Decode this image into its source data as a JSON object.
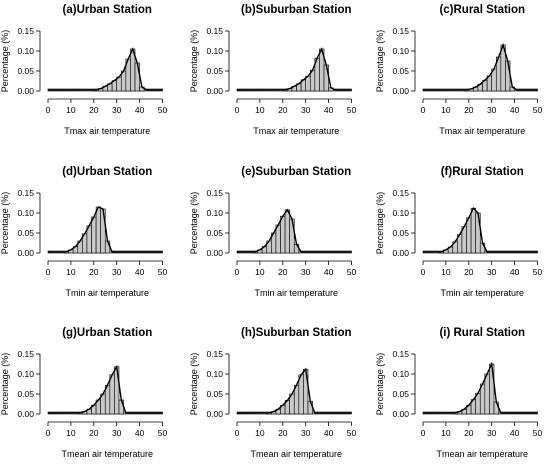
{
  "figure": {
    "background": "#ffffff",
    "bar_color": "#c8c8c8",
    "line_color": "#000000"
  },
  "chart_data": [
    {
      "type": "bar",
      "title": "(a)Urban Station",
      "xlabel": "Tmax air temperature",
      "ylabel": "Percentage (%)",
      "xlim": [
        0,
        50
      ],
      "ylim": [
        0,
        0.15
      ],
      "xticks": [
        "0",
        "10",
        "20",
        "30",
        "40",
        "50"
      ],
      "yticks": [
        "0.00",
        "0.05",
        "0.10",
        "0.15"
      ],
      "x": [
        21,
        23,
        25,
        27,
        29,
        31,
        33,
        35,
        37,
        39,
        41
      ],
      "values": [
        0.003,
        0.006,
        0.012,
        0.018,
        0.026,
        0.035,
        0.05,
        0.08,
        0.105,
        0.07,
        0.01
      ]
    },
    {
      "type": "bar",
      "title": "(b)Suburban Station",
      "xlabel": "Tmax air temperature",
      "ylabel": "Percentage (%)",
      "xlim": [
        0,
        50
      ],
      "ylim": [
        0,
        0.15
      ],
      "xticks": [
        "0",
        "10",
        "20",
        "30",
        "40",
        "50"
      ],
      "yticks": [
        "0.00",
        "0.05",
        "0.10",
        "0.15"
      ],
      "x": [
        21,
        23,
        25,
        27,
        29,
        31,
        33,
        35,
        37,
        39,
        41
      ],
      "values": [
        0.003,
        0.006,
        0.012,
        0.018,
        0.028,
        0.037,
        0.052,
        0.082,
        0.105,
        0.065,
        0.008
      ]
    },
    {
      "type": "bar",
      "title": "(c)Rural Station",
      "xlabel": "Tmax air temperature",
      "ylabel": "Percentage (%)",
      "xlim": [
        0,
        50
      ],
      "ylim": [
        0,
        0.15
      ],
      "xticks": [
        "0",
        "10",
        "20",
        "30",
        "40",
        "50"
      ],
      "yticks": [
        "0.00",
        "0.05",
        "0.10",
        "0.15"
      ],
      "x": [
        19,
        21,
        23,
        25,
        27,
        29,
        31,
        33,
        35,
        37,
        39
      ],
      "values": [
        0.003,
        0.005,
        0.01,
        0.017,
        0.027,
        0.038,
        0.055,
        0.085,
        0.115,
        0.075,
        0.01
      ]
    },
    {
      "type": "bar",
      "title": "(d)Urban Station",
      "xlabel": "Tmin air temperature",
      "ylabel": "Percentage (%)",
      "xlim": [
        0,
        50
      ],
      "ylim": [
        0,
        0.15
      ],
      "xticks": [
        "0",
        "10",
        "20",
        "30",
        "40",
        "50"
      ],
      "yticks": [
        "0.00",
        "0.05",
        "0.10",
        "0.15"
      ],
      "x": [
        8,
        10,
        12,
        14,
        16,
        18,
        20,
        22,
        24,
        26
      ],
      "values": [
        0.003,
        0.008,
        0.016,
        0.03,
        0.048,
        0.068,
        0.09,
        0.115,
        0.11,
        0.03
      ]
    },
    {
      "type": "bar",
      "title": "(e)Suburban Station",
      "xlabel": "Tmin air temperature",
      "ylabel": "Percentage (%)",
      "xlim": [
        0,
        50
      ],
      "ylim": [
        0,
        0.15
      ],
      "xticks": [
        "0",
        "10",
        "20",
        "30",
        "40",
        "50"
      ],
      "yticks": [
        "0.00",
        "0.05",
        "0.10",
        "0.15"
      ],
      "x": [
        8,
        10,
        12,
        14,
        16,
        18,
        20,
        22,
        24,
        26
      ],
      "values": [
        0.003,
        0.008,
        0.016,
        0.03,
        0.05,
        0.07,
        0.092,
        0.108,
        0.085,
        0.022
      ]
    },
    {
      "type": "bar",
      "title": "(f)Rural Station",
      "xlabel": "Tmin air temperature",
      "ylabel": "Percentage (%)",
      "xlim": [
        0,
        50
      ],
      "ylim": [
        0,
        0.15
      ],
      "xticks": [
        "0",
        "10",
        "20",
        "30",
        "40",
        "50"
      ],
      "yticks": [
        "0.00",
        "0.05",
        "0.10",
        "0.15"
      ],
      "x": [
        8,
        10,
        12,
        14,
        16,
        18,
        20,
        22,
        24,
        26
      ],
      "values": [
        0.003,
        0.008,
        0.015,
        0.028,
        0.046,
        0.066,
        0.088,
        0.112,
        0.1,
        0.025
      ]
    },
    {
      "type": "bar",
      "title": "(g)Urban Station",
      "xlabel": "Tmean air temperature",
      "ylabel": "Percentage (%)",
      "xlim": [
        0,
        50
      ],
      "ylim": [
        0,
        0.15
      ],
      "xticks": [
        "0",
        "10",
        "20",
        "30",
        "40",
        "50"
      ],
      "yticks": [
        "0.00",
        "0.05",
        "0.10",
        "0.15"
      ],
      "x": [
        14,
        16,
        18,
        20,
        22,
        24,
        26,
        28,
        30,
        32
      ],
      "values": [
        0.003,
        0.006,
        0.012,
        0.022,
        0.035,
        0.05,
        0.072,
        0.098,
        0.118,
        0.035
      ]
    },
    {
      "type": "bar",
      "title": "(h)Suburban Station",
      "xlabel": "Tmean air temperature",
      "ylabel": "Percentage (%)",
      "xlim": [
        0,
        50
      ],
      "ylim": [
        0,
        0.15
      ],
      "xticks": [
        "0",
        "10",
        "20",
        "30",
        "40",
        "50"
      ],
      "yticks": [
        "0.00",
        "0.05",
        "0.10",
        "0.15"
      ],
      "x": [
        14,
        16,
        18,
        20,
        22,
        24,
        26,
        28,
        30,
        32
      ],
      "values": [
        0.003,
        0.006,
        0.012,
        0.022,
        0.034,
        0.05,
        0.072,
        0.098,
        0.112,
        0.032
      ]
    },
    {
      "type": "bar",
      "title": "(i) Rural Station",
      "xlabel": "Tmean air temperature",
      "ylabel": "Percentage (%)",
      "xlim": [
        0,
        50
      ],
      "ylim": [
        0,
        0.15
      ],
      "xticks": [
        "0",
        "10",
        "20",
        "30",
        "40",
        "50"
      ],
      "yticks": [
        "0.00",
        "0.05",
        "0.10",
        "0.15"
      ],
      "x": [
        14,
        16,
        18,
        20,
        22,
        24,
        26,
        28,
        30,
        32
      ],
      "values": [
        0.003,
        0.006,
        0.012,
        0.022,
        0.036,
        0.052,
        0.075,
        0.1,
        0.125,
        0.03
      ]
    }
  ]
}
